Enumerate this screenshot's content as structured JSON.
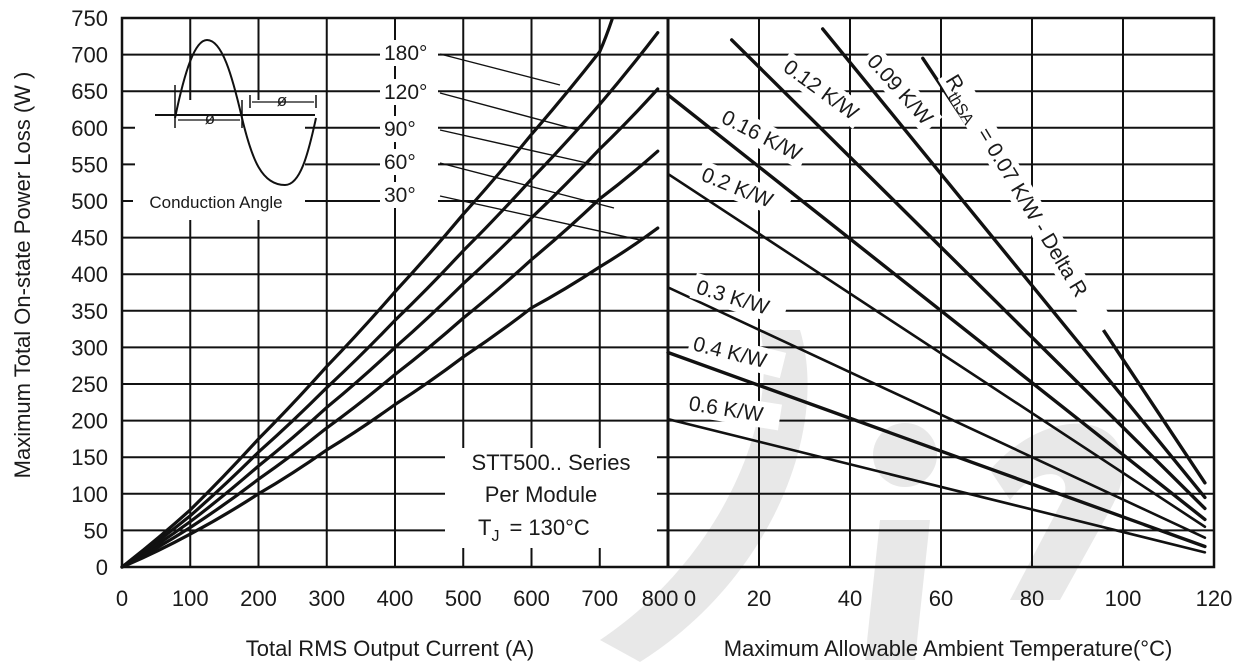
{
  "chart_data": [
    {
      "type": "line",
      "xlabel": "Total RMS Output Current (A)",
      "ylabel": "Maximum Total On-state Power Loss (W   )",
      "xlim": [
        0,
        800
      ],
      "ylim": [
        0,
        750
      ],
      "xticks": [
        "0",
        "100",
        "200",
        "300",
        "400",
        "500",
        "600",
        "700",
        "800"
      ],
      "yticks": [
        "0",
        "50",
        "100",
        "150",
        "200",
        "250",
        "300",
        "350",
        "400",
        "450",
        "500",
        "550",
        "600",
        "650",
        "700",
        "750"
      ],
      "grid": true,
      "series": [
        {
          "name": "180°",
          "x": [
            0,
            100,
            200,
            300,
            400,
            500,
            600,
            700,
            718
          ],
          "y": [
            0,
            78,
            175,
            274,
            376,
            482,
            591,
            704,
            748
          ]
        },
        {
          "name": "120°",
          "x": [
            0,
            100,
            200,
            300,
            400,
            500,
            600,
            700,
            785
          ],
          "y": [
            0,
            70,
            157,
            245,
            337,
            432,
            530,
            632,
            730
          ]
        },
        {
          "name": "90°",
          "x": [
            0,
            100,
            200,
            300,
            400,
            500,
            600,
            700,
            785
          ],
          "y": [
            0,
            62,
            138,
            218,
            300,
            387,
            477,
            571,
            653
          ]
        },
        {
          "name": "60°",
          "x": [
            0,
            100,
            200,
            300,
            400,
            500,
            600,
            700,
            785
          ],
          "y": [
            0,
            54,
            120,
            190,
            263,
            340,
            420,
            503,
            568
          ]
        },
        {
          "name": "30°",
          "x": [
            0,
            100,
            200,
            300,
            400,
            500,
            600,
            700,
            785
          ],
          "y": [
            0,
            45,
            100,
            160,
            222,
            287,
            354,
            410,
            463
          ]
        }
      ],
      "annotations": {
        "series_line1": "STT500.. Series",
        "series_line2": "Per Module",
        "tj_main": "T",
        "tj_sub": "J",
        "tj_value": "= 130°C",
        "inset_label": "Conduction Angle",
        "phi_symbol": "ø"
      }
    },
    {
      "type": "line",
      "xlabel": "Maximum Allowable Ambient Temperature(°C)",
      "xlim": [
        0,
        120
      ],
      "ylim": [
        0,
        750
      ],
      "xticks": [
        "0",
        "20",
        "40",
        "60",
        "80",
        "100",
        "120"
      ],
      "first_tick_shown": "800",
      "grid": true,
      "series": [
        {
          "name": "R thSA = 0.07 K/W - Delta R",
          "label_main": "R",
          "label_sub": "thSA",
          "label_rest": "= 0.07 K/W - Delta R",
          "x": [
            56,
            118
          ],
          "y": [
            695,
            115
          ]
        },
        {
          "name": "0.09 K/W",
          "x": [
            34,
            118
          ],
          "y": [
            735,
            95
          ]
        },
        {
          "name": "0.12 K/W",
          "x": [
            14,
            118
          ],
          "y": [
            720,
            80
          ]
        },
        {
          "name": "0.16 K/W",
          "x": [
            0,
            118
          ],
          "y": [
            645,
            65
          ]
        },
        {
          "name": "0.2 K/W",
          "x": [
            0,
            118
          ],
          "y": [
            537,
            55
          ]
        },
        {
          "name": "0.3 K/W",
          "x": [
            0,
            118
          ],
          "y": [
            382,
            40
          ]
        },
        {
          "name": "0.4 K/W",
          "x": [
            0,
            118
          ],
          "y": [
            293,
            28
          ]
        },
        {
          "name": "0.6 K/W",
          "x": [
            0,
            118
          ],
          "y": [
            202,
            20
          ]
        }
      ]
    }
  ]
}
